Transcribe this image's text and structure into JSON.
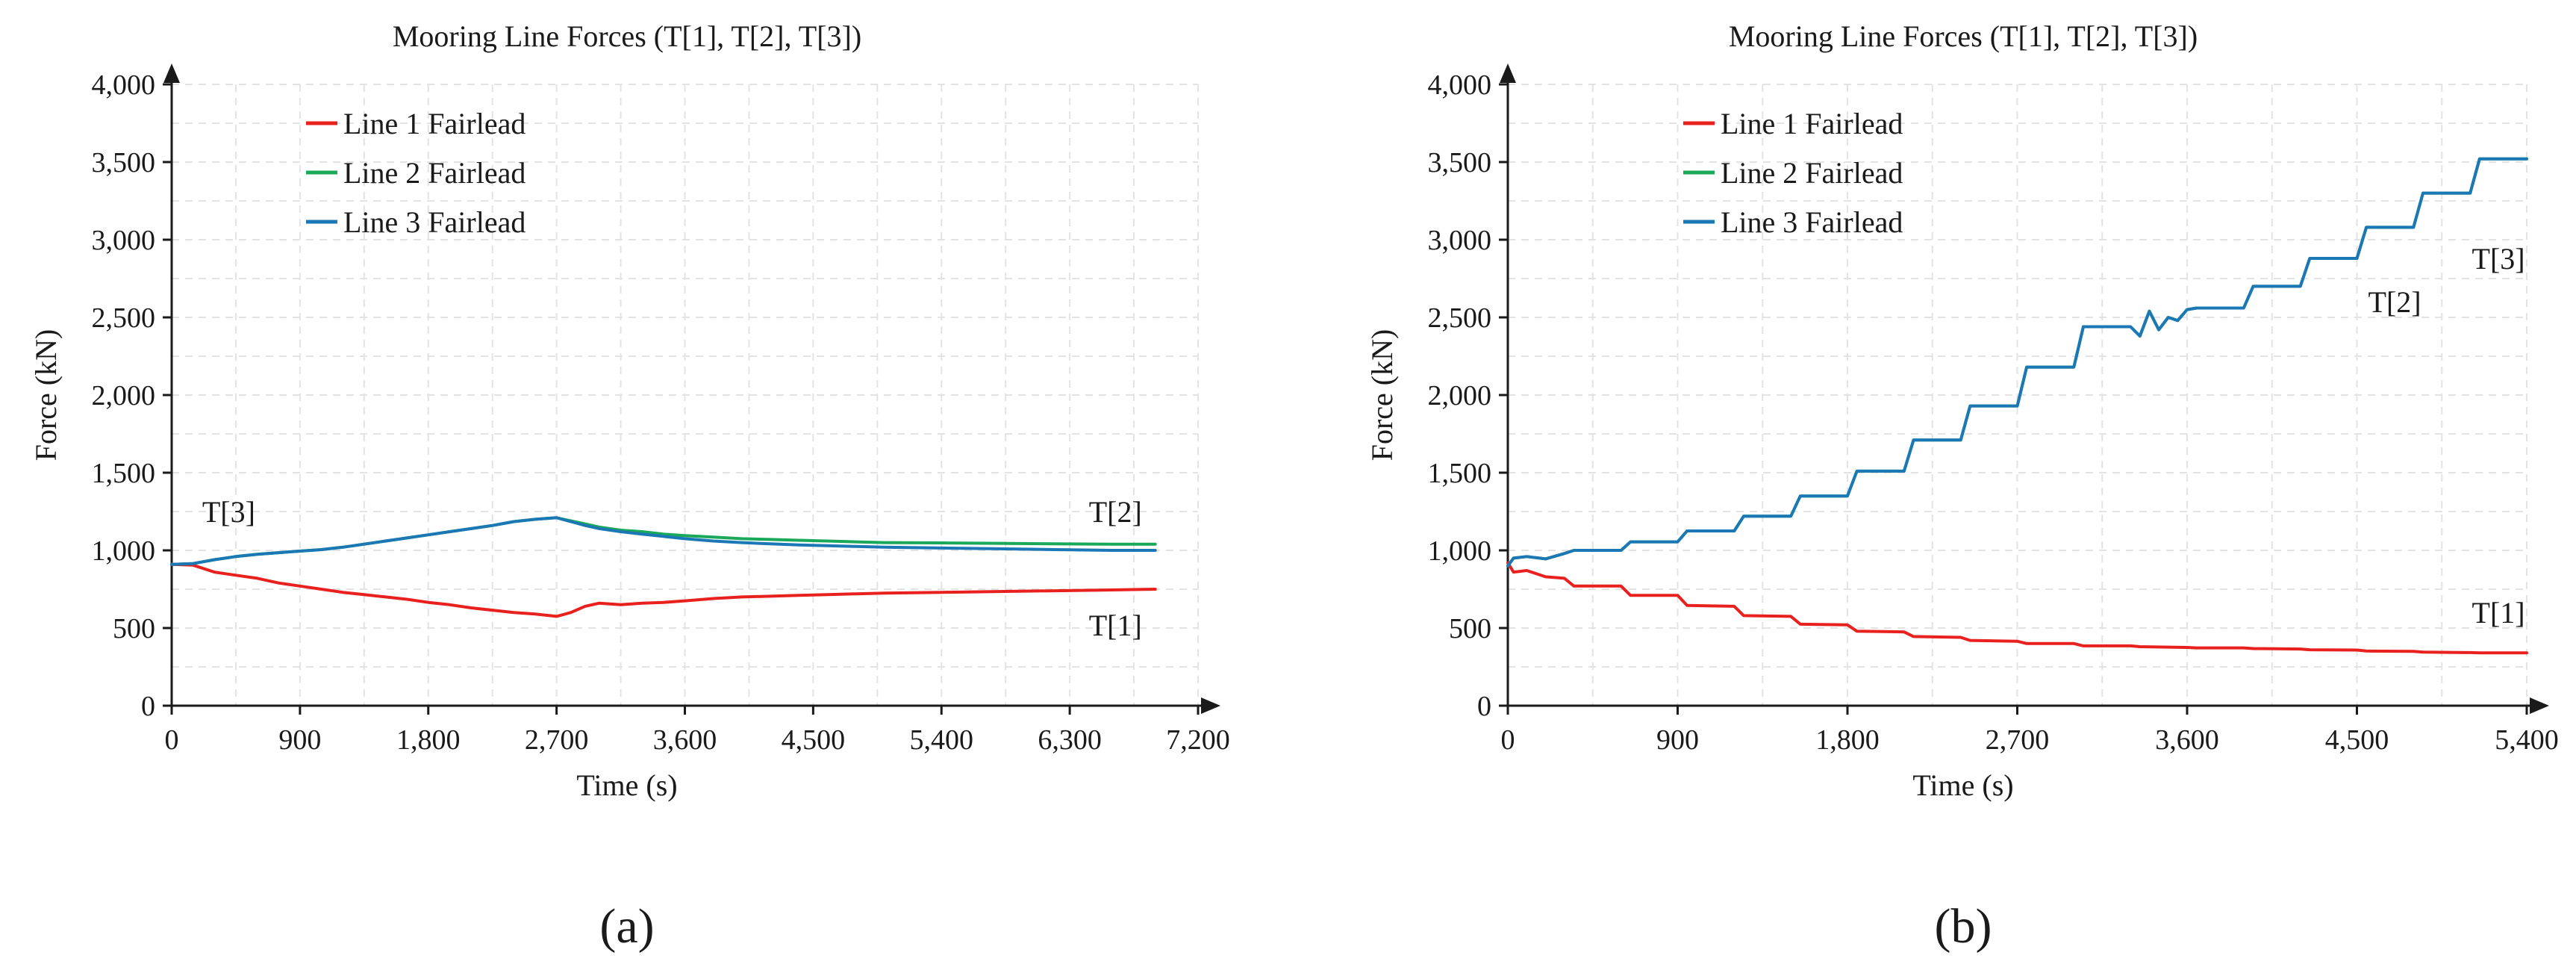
{
  "chart_data": [
    {
      "type": "line",
      "title": "Mooring Line Forces (T[1], T[2], T[3])",
      "xlabel": "Time (s)",
      "ylabel": "Force (kN)",
      "xlim": [
        0,
        7200
      ],
      "ylim": [
        0,
        4000
      ],
      "xticks": [
        0,
        900,
        1800,
        2700,
        3600,
        4500,
        5400,
        6300,
        7200
      ],
      "xtick_labels": [
        "0",
        "900",
        "1,800",
        "2,700",
        "3,600",
        "4,500",
        "5,400",
        "6,300",
        "7,200"
      ],
      "yticks": [
        0,
        500,
        1000,
        1500,
        2000,
        2500,
        3000,
        3500,
        4000
      ],
      "ytick_labels": [
        "0",
        "500",
        "1,000",
        "1,500",
        "2,000",
        "2,500",
        "3,000",
        "3,500",
        "4,000"
      ],
      "grid": true,
      "legend_position": "top-left",
      "panel_label": "(a)",
      "annotations": [
        {
          "text": "T[3]",
          "x": 400,
          "y": 1250
        },
        {
          "text": "T[2]",
          "x": 6620,
          "y": 1250
        },
        {
          "text": "T[1]",
          "x": 6620,
          "y": 520
        }
      ],
      "series": [
        {
          "name": "Line 1 Fairlead",
          "color": "#e8201e",
          "x": [
            0,
            150,
            300,
            450,
            600,
            750,
            900,
            1050,
            1200,
            1350,
            1500,
            1650,
            1800,
            1950,
            2100,
            2250,
            2400,
            2550,
            2700,
            2800,
            2900,
            3000,
            3150,
            3300,
            3450,
            3600,
            3800,
            4000,
            4200,
            4400,
            4600,
            4800,
            5000,
            5400,
            5800,
            6200,
            6600,
            6900
          ],
          "y": [
            910,
            905,
            860,
            840,
            820,
            790,
            770,
            750,
            730,
            715,
            700,
            685,
            665,
            650,
            630,
            615,
            600,
            590,
            575,
            600,
            640,
            660,
            650,
            660,
            665,
            675,
            690,
            700,
            705,
            710,
            715,
            720,
            725,
            730,
            735,
            740,
            745,
            750
          ]
        },
        {
          "name": "Line 2 Fairlead",
          "color": "#1aa85a",
          "x": [
            0,
            150,
            300,
            450,
            600,
            750,
            900,
            1050,
            1200,
            1350,
            1500,
            1650,
            1800,
            1950,
            2100,
            2250,
            2400,
            2550,
            2700,
            2800,
            2900,
            3000,
            3150,
            3300,
            3450,
            3600,
            3800,
            4000,
            4200,
            4400,
            4600,
            4800,
            5000,
            5400,
            5800,
            6200,
            6600,
            6900
          ],
          "y": [
            910,
            915,
            940,
            960,
            975,
            985,
            995,
            1005,
            1020,
            1040,
            1060,
            1080,
            1100,
            1120,
            1140,
            1160,
            1185,
            1200,
            1210,
            1190,
            1170,
            1150,
            1130,
            1120,
            1105,
            1095,
            1085,
            1075,
            1070,
            1065,
            1060,
            1055,
            1050,
            1048,
            1045,
            1042,
            1040,
            1040
          ]
        },
        {
          "name": "Line 3 Fairlead",
          "color": "#1b78b4",
          "x": [
            0,
            150,
            300,
            450,
            600,
            750,
            900,
            1050,
            1200,
            1350,
            1500,
            1650,
            1800,
            1950,
            2100,
            2250,
            2400,
            2550,
            2700,
            2800,
            2900,
            3000,
            3150,
            3300,
            3450,
            3600,
            3800,
            4000,
            4200,
            4400,
            4600,
            4800,
            5000,
            5400,
            5800,
            6200,
            6600,
            6900
          ],
          "y": [
            910,
            915,
            940,
            960,
            975,
            985,
            995,
            1005,
            1020,
            1040,
            1060,
            1080,
            1100,
            1120,
            1140,
            1160,
            1185,
            1200,
            1210,
            1185,
            1160,
            1140,
            1120,
            1105,
            1090,
            1075,
            1060,
            1050,
            1042,
            1035,
            1030,
            1025,
            1020,
            1015,
            1010,
            1005,
            1000,
            1000
          ]
        }
      ]
    },
    {
      "type": "line",
      "title": "Mooring Line Forces (T[1], T[2], T[3])",
      "xlabel": "Time (s)",
      "ylabel": "Force (kN)",
      "xlim": [
        0,
        5400
      ],
      "ylim": [
        0,
        4000
      ],
      "xticks": [
        0,
        900,
        1800,
        2700,
        3600,
        4500,
        5400
      ],
      "xtick_labels": [
        "0",
        "900",
        "1,800",
        "2,700",
        "3,600",
        "4,500",
        "5,400"
      ],
      "yticks": [
        0,
        500,
        1000,
        1500,
        2000,
        2500,
        3000,
        3500,
        4000
      ],
      "ytick_labels": [
        "0",
        "500",
        "1,000",
        "1,500",
        "2,000",
        "2,500",
        "3,000",
        "3,500",
        "4,000"
      ],
      "grid": true,
      "legend_position": "top-left",
      "panel_label": "(b)",
      "annotations": [
        {
          "text": "T[3]",
          "x": 5250,
          "y": 2880
        },
        {
          "text": "T[2]",
          "x": 4700,
          "y": 2600
        },
        {
          "text": "T[1]",
          "x": 5250,
          "y": 600
        }
      ],
      "series": [
        {
          "name": "Line 1 Fairlead",
          "color": "#e8201e",
          "x": [
            0,
            30,
            100,
            200,
            300,
            350,
            600,
            650,
            900,
            950,
            1200,
            1250,
            1500,
            1550,
            1800,
            1850,
            2100,
            2150,
            2400,
            2450,
            2700,
            2750,
            3000,
            3050,
            3300,
            3350,
            3600,
            3650,
            3900,
            3950,
            4200,
            4250,
            4500,
            4550,
            4800,
            4850,
            5100,
            5150,
            5400
          ],
          "y": [
            920,
            860,
            870,
            830,
            820,
            770,
            770,
            710,
            710,
            645,
            640,
            580,
            575,
            525,
            520,
            480,
            475,
            445,
            440,
            420,
            415,
            400,
            400,
            385,
            385,
            380,
            375,
            372,
            372,
            368,
            365,
            360,
            358,
            352,
            350,
            345,
            342,
            340,
            340
          ]
        },
        {
          "name": "Line 2 Fairlead",
          "color": "#1aa85a",
          "x": [
            0,
            30,
            100,
            200,
            300,
            350,
            600,
            650,
            900,
            950,
            1200,
            1250,
            1500,
            1550,
            1800,
            1850,
            2100,
            2150,
            2400,
            2450,
            2700,
            2750,
            3000,
            3050,
            3300,
            3350,
            3400,
            3450,
            3500,
            3550,
            3600,
            3650,
            3900,
            3950,
            4200,
            4250,
            4500,
            4550,
            4800,
            4850,
            5100,
            5150,
            5400
          ],
          "y": [
            900,
            950,
            960,
            945,
            980,
            1000,
            1000,
            1055,
            1055,
            1125,
            1125,
            1220,
            1220,
            1350,
            1350,
            1510,
            1510,
            1710,
            1710,
            1930,
            1930,
            2180,
            2180,
            2440,
            2440,
            2380,
            2540,
            2420,
            2500,
            2480,
            2550,
            2560,
            2560,
            2700,
            2700,
            2880,
            2880,
            3080,
            3080,
            3300,
            3300,
            3520,
            3520
          ]
        },
        {
          "name": "Line 3 Fairlead",
          "color": "#1b78b4",
          "x": [
            0,
            30,
            100,
            200,
            300,
            350,
            600,
            650,
            900,
            950,
            1200,
            1250,
            1500,
            1550,
            1800,
            1850,
            2100,
            2150,
            2400,
            2450,
            2700,
            2750,
            3000,
            3050,
            3300,
            3350,
            3400,
            3450,
            3500,
            3550,
            3600,
            3650,
            3900,
            3950,
            4200,
            4250,
            4500,
            4550,
            4800,
            4850,
            5100,
            5150,
            5400
          ],
          "y": [
            900,
            950,
            960,
            945,
            980,
            1000,
            1000,
            1055,
            1055,
            1125,
            1125,
            1220,
            1220,
            1350,
            1350,
            1510,
            1510,
            1710,
            1710,
            1930,
            1930,
            2180,
            2180,
            2440,
            2440,
            2380,
            2540,
            2420,
            2500,
            2480,
            2550,
            2560,
            2560,
            2700,
            2700,
            2880,
            2880,
            3080,
            3080,
            3300,
            3300,
            3520,
            3520
          ]
        }
      ]
    }
  ]
}
